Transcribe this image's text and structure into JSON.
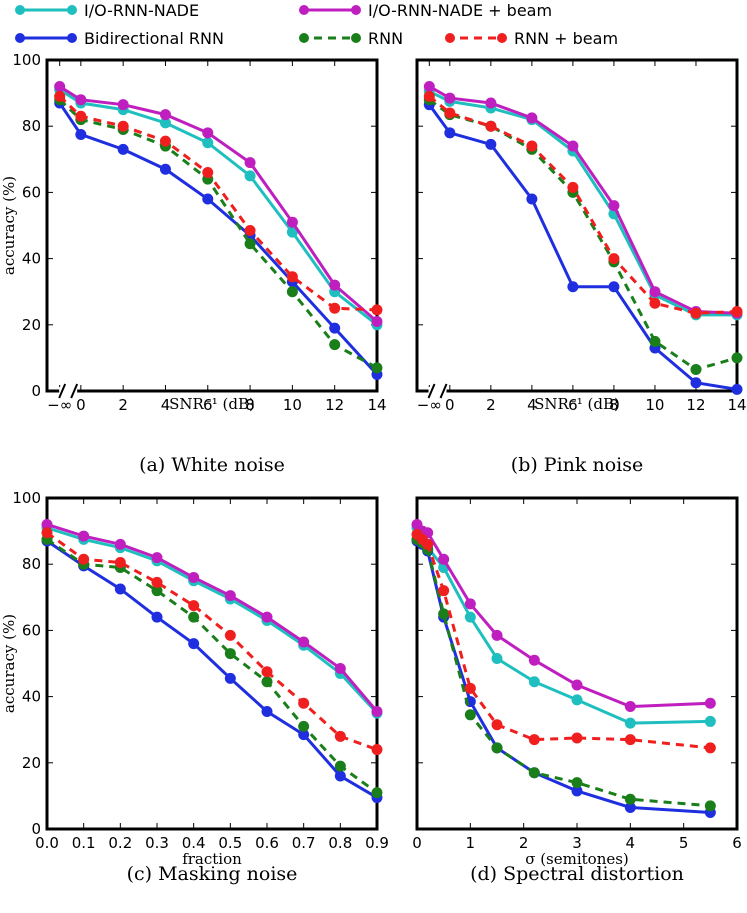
{
  "legend": [
    {
      "label": "I/O-RNN-NADE",
      "color": "#1fbfbf",
      "dashed": false
    },
    {
      "label": "I/O-RNN-NADE + beam",
      "color": "#bf1fbf",
      "dashed": false
    },
    {
      "label": "Bidirectional RNN",
      "color": "#1f2fe0",
      "dashed": false
    },
    {
      "label": "RNN",
      "color": "#1a7f1a",
      "dashed": true
    },
    {
      "label": "RNN + beam",
      "color": "#f01f1f",
      "dashed": true
    }
  ],
  "chart_data": [
    {
      "type": "line",
      "caption": "(a) White noise",
      "xlabel": "SNR⁻¹ (dB)",
      "ylabel": "accuracy (%)",
      "xlim": [
        -1.6,
        14
      ],
      "ylim": [
        0,
        100
      ],
      "x": [
        -1,
        0,
        2,
        4,
        6,
        8,
        10,
        12,
        14
      ],
      "xticks": [
        "−∞",
        "0",
        "2",
        "4",
        "6",
        "8",
        "10",
        "12",
        "14"
      ],
      "yticks": [
        "0",
        "20",
        "40",
        "60",
        "80",
        "100"
      ],
      "axis_break": true,
      "series": [
        {
          "name": "I/O-RNN-NADE",
          "values": [
            91,
            87,
            85,
            81,
            75,
            65,
            48,
            30,
            20
          ]
        },
        {
          "name": "I/O-RNN-NADE + beam",
          "values": [
            92,
            88,
            86.5,
            83.5,
            78,
            69,
            51,
            32,
            21
          ]
        },
        {
          "name": "Bidirectional RNN",
          "values": [
            87,
            77.5,
            73,
            67,
            58,
            47,
            33,
            19,
            5
          ]
        },
        {
          "name": "RNN",
          "values": [
            88,
            82,
            79,
            74,
            64,
            44.5,
            30,
            14,
            7
          ]
        },
        {
          "name": "RNN + beam",
          "values": [
            89,
            83,
            80,
            75.5,
            66,
            48.5,
            34.5,
            25,
            24.5
          ]
        }
      ]
    },
    {
      "type": "line",
      "caption": "(b) Pink noise",
      "xlabel": "SNR⁻¹ (dB)",
      "ylabel": "",
      "xlim": [
        -1.6,
        14
      ],
      "ylim": [
        0,
        100
      ],
      "x": [
        -1,
        0,
        2,
        4,
        6,
        8,
        10,
        12,
        14
      ],
      "xticks": [
        "−∞",
        "0",
        "2",
        "4",
        "6",
        "8",
        "10",
        "12",
        "14"
      ],
      "yticks": [],
      "axis_break": true,
      "series": [
        {
          "name": "I/O-RNN-NADE",
          "values": [
            90.5,
            87.5,
            85.5,
            82,
            72.5,
            53.5,
            29,
            23,
            23
          ]
        },
        {
          "name": "I/O-RNN-NADE + beam",
          "values": [
            92,
            88.5,
            87,
            82.5,
            74,
            56,
            30,
            24,
            23.5
          ]
        },
        {
          "name": "Bidirectional RNN",
          "values": [
            86.5,
            78,
            74.5,
            58,
            31.5,
            31.5,
            13,
            2.5,
            0.5
          ]
        },
        {
          "name": "RNN",
          "values": [
            88,
            83.5,
            80,
            73,
            60,
            39,
            15,
            6.5,
            10
          ]
        },
        {
          "name": "RNN + beam",
          "values": [
            89,
            84,
            80,
            74,
            61.5,
            40,
            26.5,
            23.5,
            24
          ]
        }
      ]
    },
    {
      "type": "line",
      "caption": "(c) Masking noise",
      "xlabel": "fraction",
      "ylabel": "accuracy (%)",
      "xlim": [
        0,
        0.9
      ],
      "ylim": [
        0,
        100
      ],
      "x": [
        0,
        0.1,
        0.2,
        0.3,
        0.4,
        0.5,
        0.6,
        0.7,
        0.8,
        0.9
      ],
      "xticks": [
        "0.0",
        "0.1",
        "0.2",
        "0.3",
        "0.4",
        "0.5",
        "0.6",
        "0.7",
        "0.8",
        "0.9"
      ],
      "yticks": [
        "0",
        "20",
        "40",
        "60",
        "80",
        "100"
      ],
      "axis_break": false,
      "series": [
        {
          "name": "I/O-RNN-NADE",
          "values": [
            91,
            87.5,
            85,
            81,
            75,
            69.5,
            63,
            55.5,
            47,
            35
          ]
        },
        {
          "name": "I/O-RNN-NADE + beam",
          "values": [
            92,
            88.5,
            86,
            82,
            76,
            70.5,
            64,
            56.5,
            48.5,
            35.5
          ]
        },
        {
          "name": "Bidirectional RNN",
          "values": [
            87,
            79.5,
            72.5,
            64,
            56,
            45.5,
            35.5,
            28.5,
            16,
            9.5
          ]
        },
        {
          "name": "RNN",
          "values": [
            87.5,
            80,
            79,
            72,
            64,
            53,
            44.5,
            31,
            19,
            11
          ]
        },
        {
          "name": "RNN + beam",
          "values": [
            89.5,
            81.5,
            80.5,
            74.5,
            67.5,
            58.5,
            47.5,
            38,
            28,
            24
          ]
        }
      ]
    },
    {
      "type": "line",
      "caption": "(d) Spectral distortion",
      "xlabel": "σ (semitones)",
      "ylabel": "",
      "xlim": [
        0,
        6
      ],
      "ylim": [
        0,
        100
      ],
      "x": [
        0,
        0.1,
        0.2,
        0.5,
        1,
        1.5,
        2.2,
        3,
        4,
        5.5
      ],
      "xticks": [
        "0",
        "1",
        "2",
        "3",
        "4",
        "5",
        "6"
      ],
      "xtick_values": [
        0,
        1,
        2,
        3,
        4,
        5,
        6
      ],
      "yticks": [],
      "axis_break": false,
      "series": [
        {
          "name": "I/O-RNN-NADE",
          "values": [
            91,
            88,
            85,
            79,
            64,
            51.5,
            44.5,
            39,
            32,
            32.5
          ]
        },
        {
          "name": "I/O-RNN-NADE + beam",
          "values": [
            92,
            90,
            89.5,
            81.5,
            68,
            58.5,
            51,
            43.5,
            37,
            38
          ]
        },
        {
          "name": "Bidirectional RNN",
          "values": [
            87,
            86,
            84,
            64,
            38.5,
            24.5,
            17,
            11.5,
            6.5,
            5
          ]
        },
        {
          "name": "RNN",
          "values": [
            87.5,
            86.5,
            84.5,
            65,
            34.5,
            24.5,
            17,
            14,
            9,
            7
          ]
        },
        {
          "name": "RNN + beam",
          "values": [
            89,
            87.5,
            86,
            72,
            42.5,
            31.5,
            27,
            27.5,
            27,
            24.5
          ]
        }
      ]
    }
  ]
}
